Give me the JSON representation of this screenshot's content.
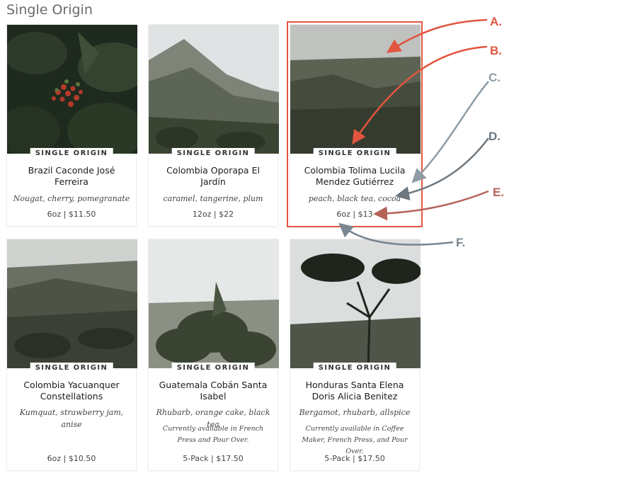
{
  "page": {
    "title": "Single Origin"
  },
  "colors": {
    "callout_red": "#e2553f",
    "callout_blue_gray": "#8e9ca6",
    "callout_dark_gray": "#6d777f",
    "callout_brown": "#b5645a",
    "callout_slate": "#7a8790"
  },
  "products": [
    {
      "badge": "SINGLE ORIGIN",
      "name": "Brazil Caconde José Ferreira",
      "notes": "Nougat, cherry, pomegranate",
      "availability": "",
      "price": "6oz | $11.50",
      "image": "coffee-cherries-photo"
    },
    {
      "badge": "SINGLE ORIGIN",
      "name": "Colombia Oporapa El Jardín",
      "notes": "caramel, tangerine, plum",
      "availability": "",
      "price": "12oz | $22",
      "image": "mountain-slope-photo"
    },
    {
      "badge": "SINGLE ORIGIN",
      "name": "Colombia Tolima Lucila Mendez Gutiérrez",
      "notes": "peach, black tea, cocoa",
      "availability": "",
      "price": "6oz | $13",
      "image": "valley-landscape-photo"
    },
    {
      "badge": "SINGLE ORIGIN",
      "name": "Colombia Yacuanquer Constellations",
      "notes": "Kumquat, strawberry jam, anise",
      "availability": "",
      "price": "6oz | $10.50",
      "image": "hillside-farm-photo"
    },
    {
      "badge": "SINGLE ORIGIN",
      "name": "Guatemala Cobán Santa Isabel",
      "notes": "Rhubarb, orange cake, black tea",
      "availability": "Currently available in French Press and Pour Over.",
      "price": "5-Pack | $17.50",
      "image": "coffee-plant-photo"
    },
    {
      "badge": "SINGLE ORIGIN",
      "name": "Honduras Santa Elena Doris Alicia Benitez",
      "notes": "Bergamot, rhubarb, allspice",
      "availability": "Currently available in Coffee Maker, French Press, and Pour Over.",
      "price": "5-Pack | $17.50",
      "image": "tree-silhouette-photo"
    }
  ],
  "annotations": [
    {
      "label": "A.",
      "color_key": "callout_red"
    },
    {
      "label": "B.",
      "color_key": "callout_red"
    },
    {
      "label": "C.",
      "color_key": "callout_blue_gray"
    },
    {
      "label": "D.",
      "color_key": "callout_dark_gray"
    },
    {
      "label": "E.",
      "color_key": "callout_brown"
    },
    {
      "label": "F.",
      "color_key": "callout_slate"
    }
  ]
}
